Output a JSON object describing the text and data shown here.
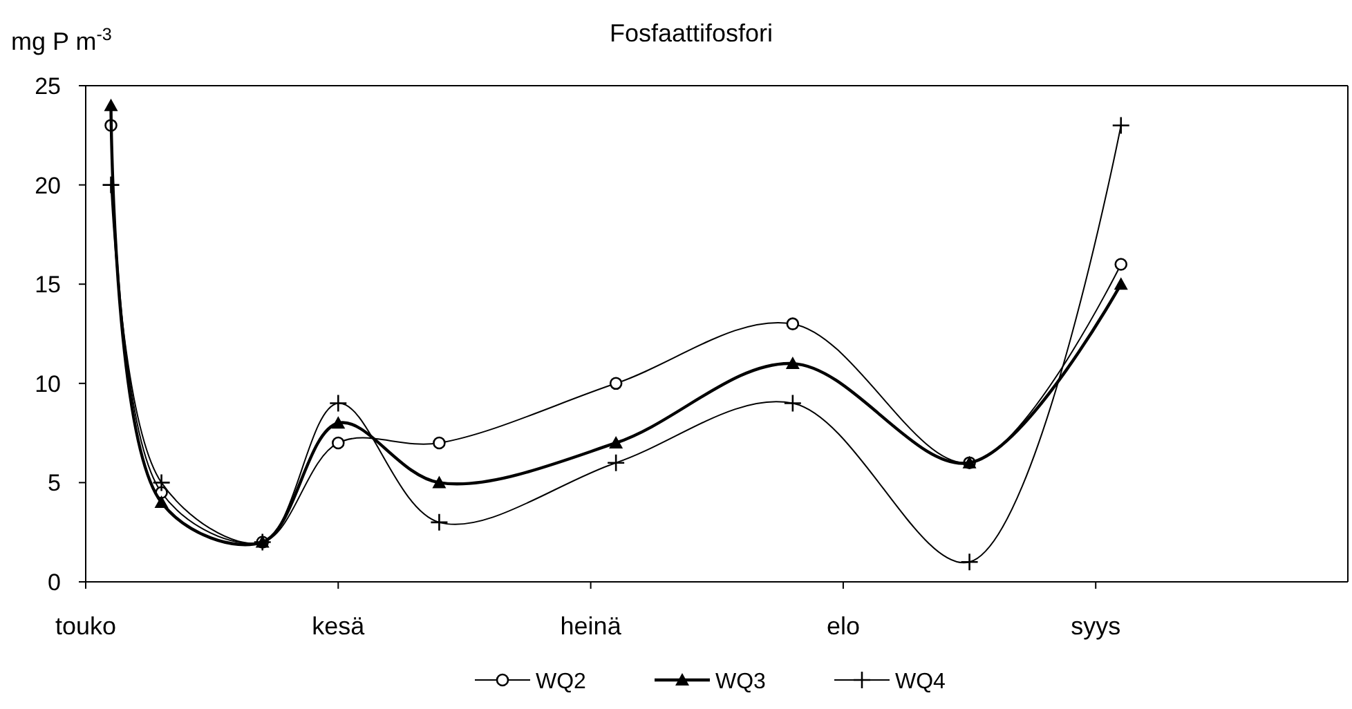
{
  "chart_data": {
    "type": "line",
    "title": "Fosfaattifosfori",
    "ylabel": "mg P m$^{-3}$",
    "categories": [
      "touko",
      null,
      null,
      null,
      null,
      null,
      null,
      null,
      null,
      null,
      "kesä",
      null,
      null,
      null,
      null,
      null,
      null,
      null,
      null,
      null,
      "heinä",
      null,
      null,
      null,
      null,
      null,
      null,
      null,
      null,
      null,
      "elo",
      null,
      null,
      null,
      null,
      null,
      null,
      null,
      null,
      null,
      "syys",
      null,
      null,
      null,
      null,
      null,
      null,
      null,
      null,
      null
    ],
    "ylim": [
      0,
      25
    ],
    "yticks": [
      0,
      5,
      10,
      15,
      20,
      25
    ],
    "grid": false,
    "legend": "bottom",
    "line_style": "solid",
    "series": [
      {
        "name": "WQ2",
        "color": "#000000",
        "marker": "circle",
        "values": [
          null,
          23,
          null,
          4.5,
          null,
          null,
          null,
          2,
          null,
          null,
          7,
          null,
          null,
          null,
          7,
          null,
          null,
          null,
          null,
          null,
          null,
          10,
          null,
          null,
          null,
          null,
          null,
          null,
          13,
          null,
          null,
          null,
          null,
          null,
          null,
          6,
          null,
          null,
          null,
          null,
          null,
          16,
          null,
          null,
          null,
          null,
          null,
          null,
          null,
          null
        ]
      },
      {
        "name": "WQ3",
        "color": "#000000",
        "marker": "triangle",
        "values": [
          null,
          24,
          null,
          4,
          null,
          null,
          null,
          2,
          null,
          null,
          8,
          null,
          null,
          null,
          5,
          null,
          null,
          null,
          null,
          null,
          null,
          7,
          null,
          null,
          null,
          null,
          null,
          null,
          11,
          null,
          null,
          null,
          null,
          null,
          null,
          6,
          null,
          null,
          null,
          null,
          null,
          15,
          null,
          null,
          null,
          null,
          null,
          null,
          null,
          null
        ]
      },
      {
        "name": "WQ4",
        "color": "#000000",
        "marker": "cross",
        "values": [
          null,
          20,
          null,
          5,
          null,
          null,
          null,
          2,
          null,
          null,
          9,
          null,
          null,
          null,
          3,
          null,
          null,
          null,
          null,
          null,
          null,
          6,
          null,
          null,
          null,
          null,
          null,
          null,
          9,
          null,
          null,
          null,
          null,
          null,
          null,
          1,
          null,
          null,
          null,
          null,
          null,
          23,
          null,
          null,
          null,
          null,
          null,
          null,
          null,
          null
        ]
      }
    ]
  }
}
